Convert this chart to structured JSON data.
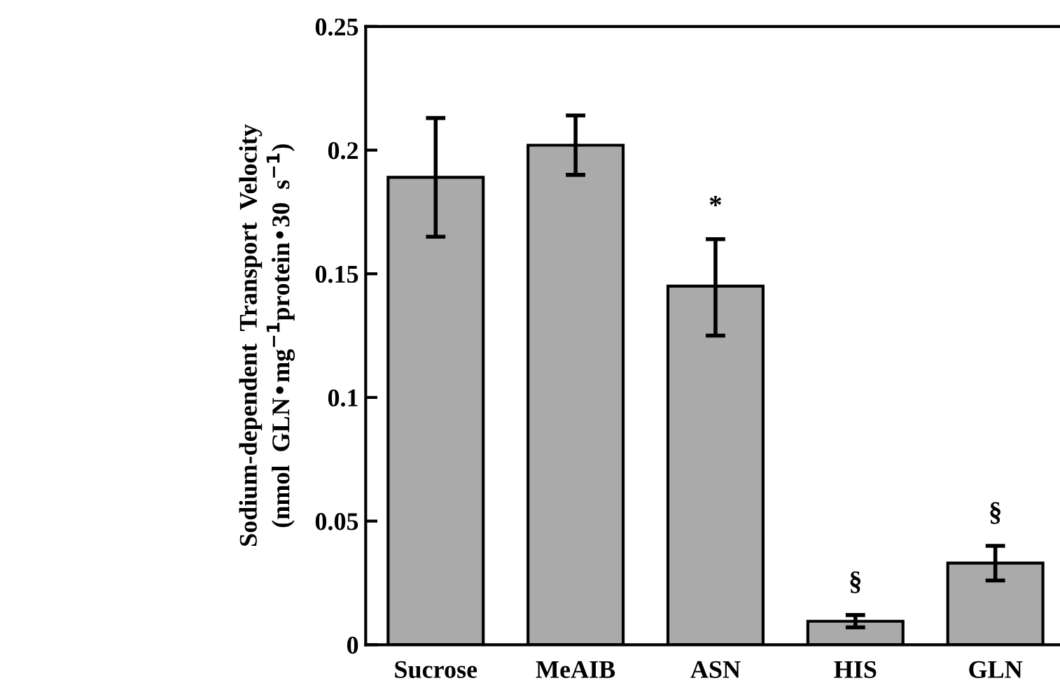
{
  "chart_data": {
    "type": "bar",
    "ylabel": "Sodium-dependent  Transport  Velocity\n(nmol  GLN•mg$^{−1}$protein•30  s$^{−1}$)",
    "categories": [
      "Sucrose",
      "MeAIB",
      "ASN",
      "HIS",
      "GLN"
    ],
    "values": [
      0.189,
      0.202,
      0.145,
      0.0095,
      0.033
    ],
    "errors": [
      [
        0.165,
        0.213
      ],
      [
        0.19,
        0.214
      ],
      [
        0.125,
        0.164
      ],
      [
        0.007,
        0.012
      ],
      [
        0.026,
        0.04
      ]
    ],
    "color": "#aaaaaa",
    "ylim": [
      0,
      0.25
    ],
    "yticks": [
      0,
      0.05,
      0.1,
      0.15,
      0.2,
      0.25
    ],
    "annotations": [
      {
        "text": "*",
        "x": "ASN",
        "y": 0.164
      },
      {
        "text": "§",
        "x": "HIS",
        "y": 0.012
      },
      {
        "text": "§",
        "x": "GLN",
        "y": 0.04
      }
    ],
    "grid": false
  }
}
